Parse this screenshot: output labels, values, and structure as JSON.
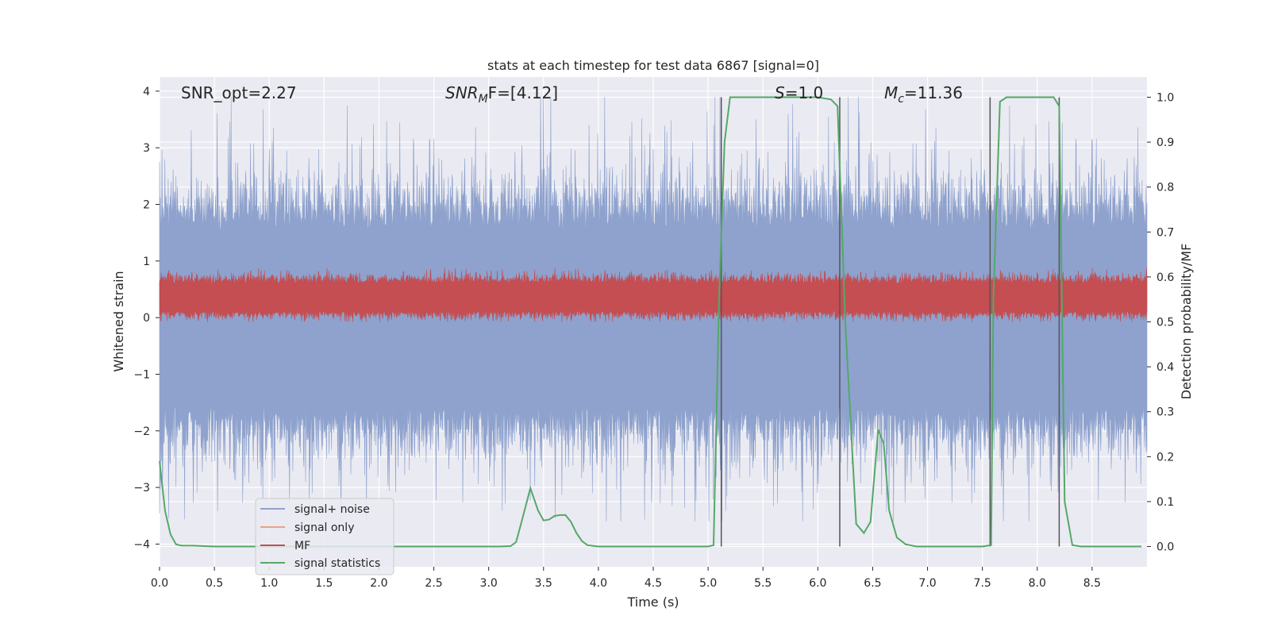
{
  "chart_data": {
    "type": "line",
    "title": "stats at each timestep for test data 6867 [signal=0]",
    "xlabel": "Time (s)",
    "ylabel": "Whitened strain",
    "y2label": "Detection probability/MF",
    "xlim": [
      0.0,
      9.0
    ],
    "ylim": [
      -4.4,
      4.25
    ],
    "y2lim": [
      -0.045,
      1.045
    ],
    "xticks": [
      0.0,
      0.5,
      1.0,
      1.5,
      2.0,
      2.5,
      3.0,
      3.5,
      4.0,
      4.5,
      5.0,
      5.5,
      6.0,
      6.5,
      7.0,
      7.5,
      8.0,
      8.5
    ],
    "xtick_labels": [
      "0.0",
      "0.5",
      "1.0",
      "1.5",
      "2.0",
      "2.5",
      "3.0",
      "3.5",
      "4.0",
      "4.5",
      "5.0",
      "5.5",
      "6.0",
      "6.5",
      "7.0",
      "7.5",
      "8.0",
      "8.5"
    ],
    "yticks": [
      4,
      3,
      2,
      1,
      0,
      -1,
      -2,
      -3,
      -4
    ],
    "ytick_labels": [
      "4",
      "3",
      "2",
      "1",
      "0",
      "−1",
      "−2",
      "−3",
      "−4"
    ],
    "y2ticks": [
      1.0,
      0.9,
      0.8,
      0.7,
      0.6,
      0.5,
      0.4,
      0.3,
      0.2,
      0.1,
      0.0
    ],
    "y2tick_labels": [
      "1.0",
      "0.9",
      "0.8",
      "0.7",
      "0.6",
      "0.5",
      "0.4",
      "0.3",
      "0.2",
      "0.1",
      "0.0"
    ],
    "annotations": {
      "snr_opt": "SNR_opt=2.27",
      "snr_mf_sym": "SNR",
      "snr_mf_sub": "M",
      "snr_mf_rest": "F=[4.12]",
      "s_sym": "S",
      "s_rest": "=1.0",
      "mc_sym": "M",
      "mc_sub": "c",
      "mc_rest": "=11.36"
    },
    "legend": {
      "position": "lower-left",
      "entries": [
        {
          "label": "signal+ noise",
          "color": "#8ea2cd"
        },
        {
          "label": "signal only",
          "color": "#e8a487"
        },
        {
          "label": "MF",
          "color": "#c44e52"
        },
        {
          "label": "signal statistics",
          "color": "#55a868"
        }
      ]
    },
    "vertical_lines_x": [
      5.12,
      6.2,
      7.57,
      8.2
    ],
    "vertical_lines_range": [
      0.0,
      1.0
    ],
    "series": [
      {
        "name": "signal+ noise",
        "axis": "left",
        "color": "#8ea2cd",
        "description": "whitened strain noise, approx. range -3.6 to 3.9, typical envelope ±2",
        "approx_range": [
          -3.6,
          3.9
        ]
      },
      {
        "name": "signal only",
        "axis": "left",
        "color": "#e8a487",
        "x": [],
        "y": []
      },
      {
        "name": "MF",
        "axis": "right",
        "color": "#c44e52",
        "description": "matched filter output, approx. range 0.5 to 0.62",
        "approx_range": [
          0.5,
          0.62
        ]
      },
      {
        "name": "signal statistics",
        "axis": "right",
        "color": "#55a868",
        "x": [
          0.0,
          0.05,
          0.1,
          0.15,
          0.2,
          0.3,
          0.5,
          1.0,
          2.0,
          3.0,
          3.1,
          3.2,
          3.25,
          3.3,
          3.38,
          3.45,
          3.5,
          3.55,
          3.6,
          3.65,
          3.7,
          3.75,
          3.8,
          3.85,
          3.9,
          4.0,
          4.5,
          5.0,
          5.05,
          5.1,
          5.15,
          5.2,
          5.5,
          6.0,
          6.12,
          6.18,
          6.25,
          6.35,
          6.42,
          6.48,
          6.55,
          6.6,
          6.65,
          6.72,
          6.8,
          6.9,
          7.0,
          7.5,
          7.58,
          7.6,
          7.66,
          7.72,
          8.0,
          8.15,
          8.2,
          8.25,
          8.32,
          8.4,
          8.95
        ],
        "y": [
          0.19,
          0.08,
          0.027,
          0.005,
          0.002,
          0.002,
          0.0,
          0.0,
          0.0,
          0.0,
          0.0,
          0.001,
          0.01,
          0.055,
          0.13,
          0.08,
          0.058,
          0.06,
          0.068,
          0.07,
          0.07,
          0.055,
          0.03,
          0.012,
          0.003,
          0.0,
          0.0,
          0.0,
          0.003,
          0.55,
          0.9,
          1.0,
          1.0,
          1.0,
          0.995,
          0.98,
          0.5,
          0.05,
          0.03,
          0.055,
          0.26,
          0.23,
          0.08,
          0.02,
          0.005,
          0.0,
          0.0,
          0.0,
          0.003,
          0.55,
          0.99,
          1.0,
          1.0,
          1.0,
          0.98,
          0.1,
          0.003,
          0.0,
          0.0
        ]
      }
    ]
  }
}
